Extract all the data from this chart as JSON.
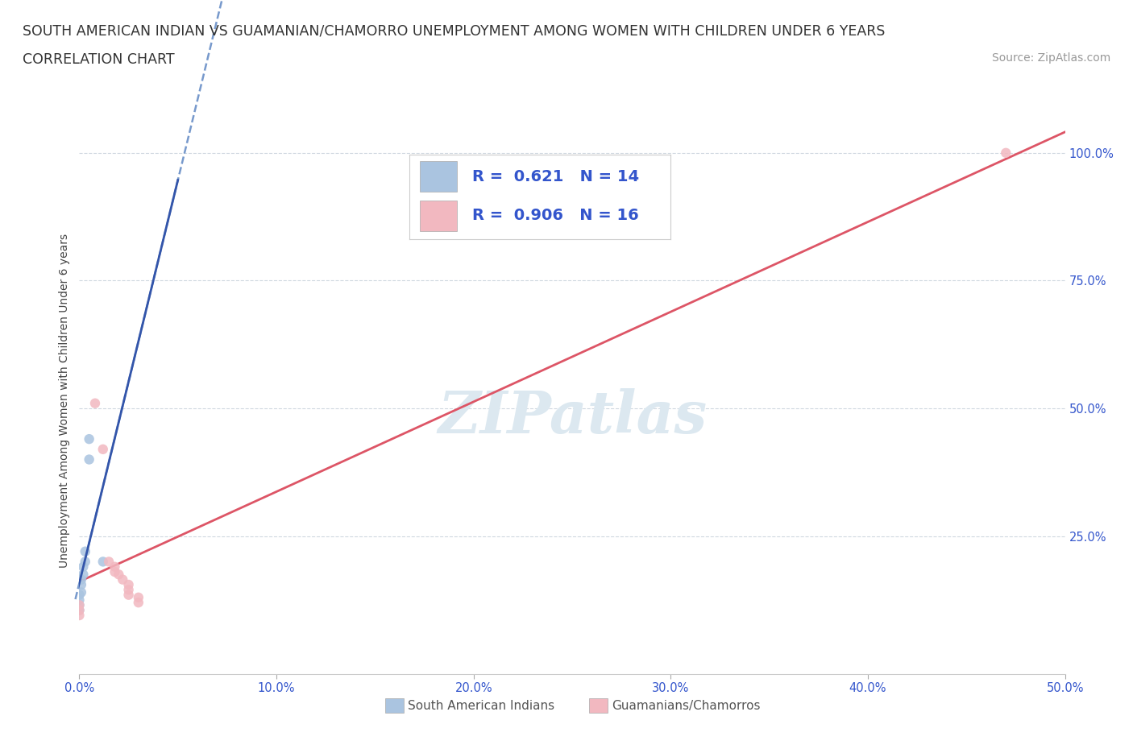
{
  "title_line1": "SOUTH AMERICAN INDIAN VS GUAMANIAN/CHAMORRO UNEMPLOYMENT AMONG WOMEN WITH CHILDREN UNDER 6 YEARS",
  "title_line2": "CORRELATION CHART",
  "source": "Source: ZipAtlas.com",
  "ylabel": "Unemployment Among Women with Children Under 6 years",
  "xlim": [
    0,
    0.5
  ],
  "ylim": [
    -0.02,
    1.05
  ],
  "xticks": [
    0.0,
    0.1,
    0.2,
    0.3,
    0.4,
    0.5
  ],
  "yticks_right": [
    0.25,
    0.5,
    0.75,
    1.0
  ],
  "blue_scatter_x": [
    0.005,
    0.005,
    0.003,
    0.003,
    0.002,
    0.002,
    0.001,
    0.001,
    0.001,
    0.0,
    0.0,
    0.0,
    0.0,
    0.012
  ],
  "blue_scatter_y": [
    0.44,
    0.4,
    0.22,
    0.2,
    0.19,
    0.175,
    0.165,
    0.155,
    0.14,
    0.135,
    0.125,
    0.115,
    0.105,
    0.2
  ],
  "pink_scatter_x": [
    0.008,
    0.012,
    0.015,
    0.018,
    0.018,
    0.02,
    0.022,
    0.025,
    0.025,
    0.025,
    0.03,
    0.03,
    0.0,
    0.0,
    0.0,
    0.47
  ],
  "pink_scatter_y": [
    0.51,
    0.42,
    0.2,
    0.19,
    0.18,
    0.175,
    0.165,
    0.155,
    0.145,
    0.135,
    0.13,
    0.12,
    0.115,
    0.105,
    0.095,
    1.0
  ],
  "blue_R": 0.621,
  "blue_N": 14,
  "pink_R": 0.906,
  "pink_N": 16,
  "blue_color": "#aac4e0",
  "pink_color": "#f2b8c0",
  "blue_line_color": "#3355aa",
  "pink_line_color": "#dd5566",
  "blue_dash_color": "#7799cc",
  "watermark_text": "ZIPatlas",
  "watermark_color": "#dce8f0",
  "title_fontsize": 12.5,
  "axis_label_fontsize": 10,
  "tick_fontsize": 10.5,
  "legend_fontsize": 14,
  "source_fontsize": 10,
  "background_color": "#ffffff",
  "grid_color": "#d0d8e0",
  "legend_text_color": "#3355cc"
}
